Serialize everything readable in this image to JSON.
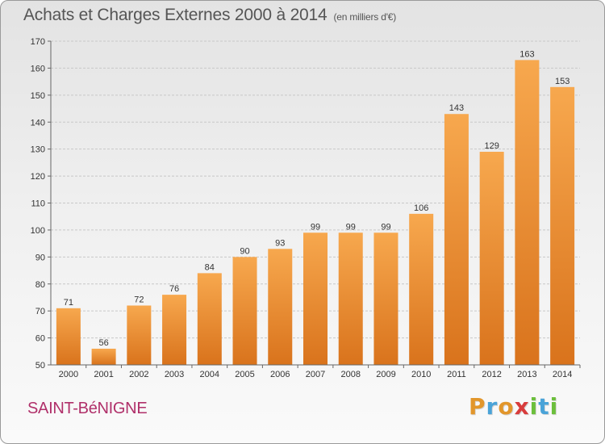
{
  "header": {
    "title": "Achats et Charges Externes 2000 à 2014",
    "subtitle": "(en milliers d'€)"
  },
  "commune": "SAINT-BéNIGNE",
  "logo": {
    "letters": [
      "P",
      "r",
      "o",
      "x",
      "i",
      "t",
      "i"
    ],
    "colors": [
      "#e2962b",
      "#4aa3d8",
      "#e2962b",
      "#d83c3c",
      "#6cbf3c",
      "#4aa3d8",
      "#6cbf3c"
    ]
  },
  "colors": {
    "bar_top": "#f7a84e",
    "bar_bottom": "#d9731c",
    "grid": "#c8c8c8"
  },
  "chart_data": {
    "type": "bar",
    "title": "Achats et Charges Externes 2000 à 2014",
    "subtitle": "(en milliers d'€)",
    "categories": [
      "2000",
      "2001",
      "2002",
      "2003",
      "2004",
      "2005",
      "2006",
      "2007",
      "2008",
      "2009",
      "2010",
      "2011",
      "2012",
      "2013",
      "2014"
    ],
    "values": [
      71,
      56,
      72,
      76,
      84,
      90,
      93,
      99,
      99,
      99,
      106,
      143,
      129,
      163,
      153
    ],
    "ylim": [
      50,
      170
    ],
    "yticks": [
      50,
      60,
      70,
      80,
      90,
      100,
      110,
      120,
      130,
      140,
      150,
      160,
      170
    ],
    "grid": true,
    "xlabel": "",
    "ylabel": ""
  }
}
